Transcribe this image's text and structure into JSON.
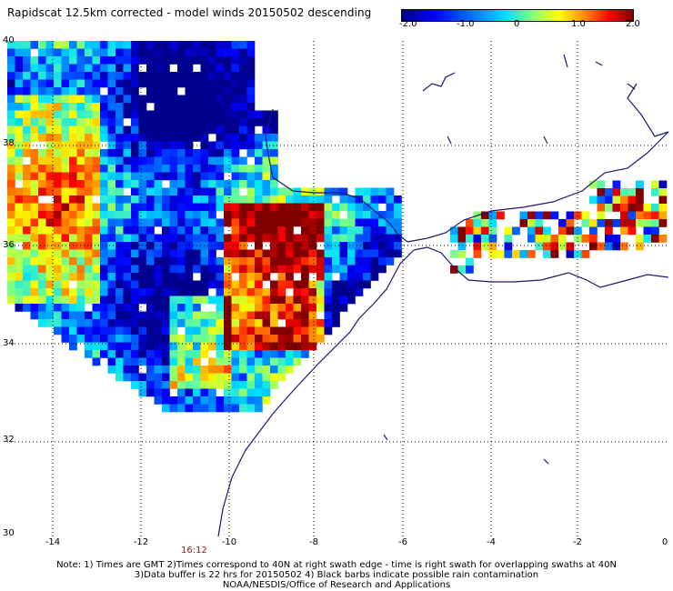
{
  "title": "Rapidscat 12.5km corrected - model winds 20150502 descending",
  "colorbar": {
    "ticks": [
      "-2.0",
      "-1.0",
      "0",
      "1.0",
      "2.0"
    ],
    "range": [
      -2.0,
      2.0
    ]
  },
  "axes": {
    "lat_ticks": [
      "40",
      "38",
      "36",
      "34",
      "32",
      "30"
    ],
    "lon_ticks": [
      "-14",
      "-12",
      "-10",
      "-8",
      "-6",
      "-4",
      "-2",
      "0"
    ],
    "lat_range": [
      30,
      40
    ],
    "lon_range": [
      -15,
      0
    ]
  },
  "time_label": "16:12",
  "notes": [
    "Note: 1) Times are GMT 2)Times correspond to 40N at right swath edge - time is right swath for overlapping swaths at 40N",
    "3)Data buffer is 22 hrs for 20150502 4) Black barbs indicate possible rain contamination",
    "NOAA/NESDIS/Office of Research and Applications"
  ]
}
